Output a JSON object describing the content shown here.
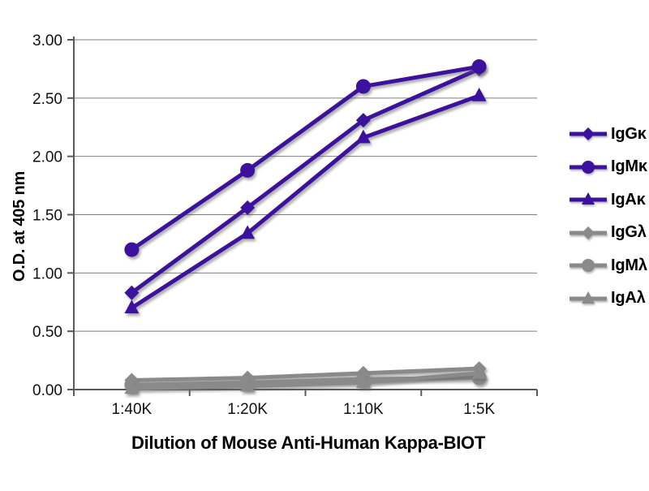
{
  "figure": {
    "background": "#ffffff",
    "colors": {
      "kappa_series": "#3B119E",
      "lambda_series": "#8A8A8A",
      "gridline": "#7f7f7f",
      "axis_line": "#595959",
      "text": "#000000"
    }
  },
  "chart_data": {
    "type": "line",
    "title": "",
    "xlabel": "Dilution of Mouse Anti-Human Kappa-BIOT",
    "ylabel": "O.D. at 405 nm",
    "categories": [
      "1:40K",
      "1:20K",
      "1:10K",
      "1:5K"
    ],
    "ylim": [
      0,
      3
    ],
    "ytick_step": 0.5,
    "ytick_labels": [
      "0.00",
      "0.50",
      "1.00",
      "1.50",
      "2.00",
      "2.50",
      "3.00"
    ],
    "grid": "horizontal-only",
    "legend_position": "right-middle",
    "series": [
      {
        "name": "IgGκ",
        "marker": "diamond",
        "color": "#3B119E",
        "values": [
          0.83,
          1.56,
          2.31,
          2.75
        ]
      },
      {
        "name": "IgMκ",
        "marker": "circle",
        "color": "#3B119E",
        "values": [
          1.2,
          1.88,
          2.6,
          2.77
        ]
      },
      {
        "name": "IgAκ",
        "marker": "triangle",
        "color": "#3B119E",
        "values": [
          0.7,
          1.34,
          2.16,
          2.52
        ]
      },
      {
        "name": "IgGλ",
        "marker": "diamond",
        "color": "#8A8A8A",
        "values": [
          0.08,
          0.1,
          0.14,
          0.18
        ]
      },
      {
        "name": "IgMλ",
        "marker": "circle",
        "color": "#8A8A8A",
        "values": [
          0.04,
          0.06,
          0.09,
          0.1
        ]
      },
      {
        "name": "IgAλ",
        "marker": "triangle",
        "color": "#8A8A8A",
        "values": [
          0.01,
          0.03,
          0.06,
          0.14
        ]
      }
    ]
  }
}
